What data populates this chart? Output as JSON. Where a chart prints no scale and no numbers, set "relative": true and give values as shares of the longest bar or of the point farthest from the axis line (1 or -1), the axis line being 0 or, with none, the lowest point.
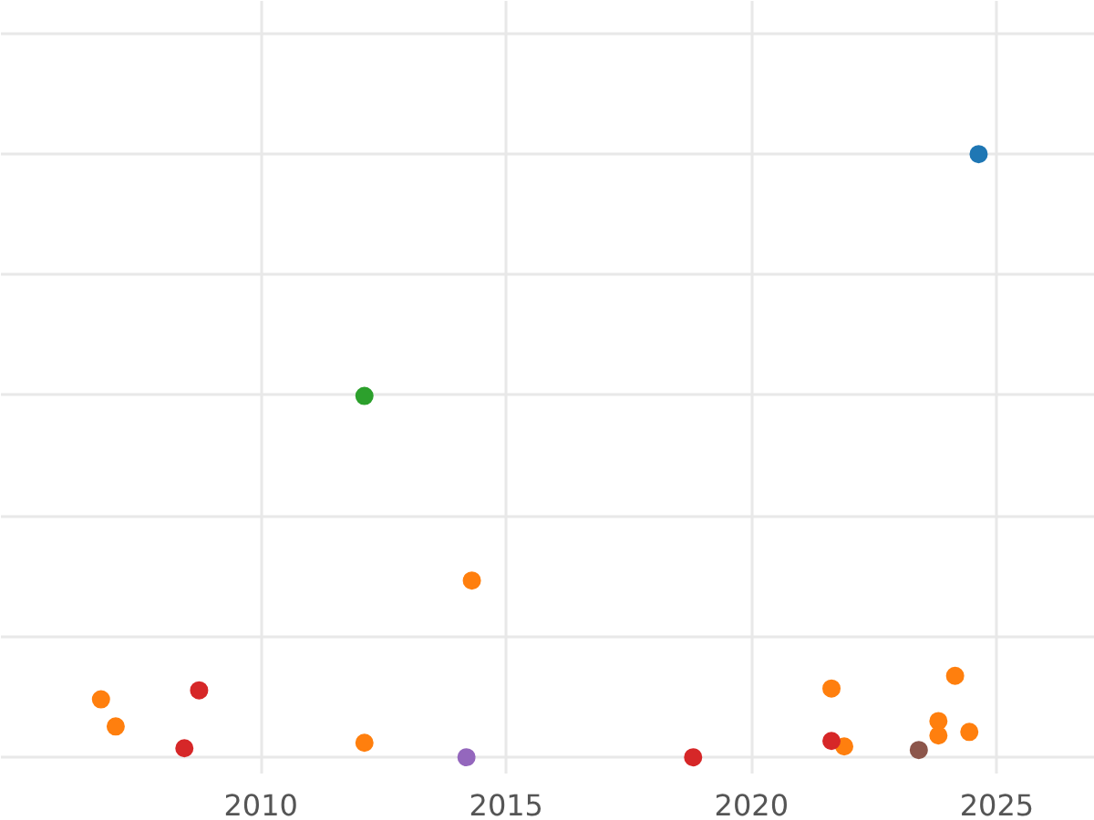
{
  "chart_data": {
    "type": "scatter",
    "relative": true,
    "xlim": [
      2004.7,
      2027
    ],
    "xticks": [
      2010,
      2015,
      2020,
      2025
    ],
    "grid": true,
    "marker": "circle",
    "series": [
      {
        "color": "#1f77b4",
        "x": [
          2024.63
        ],
        "values": [
          1.0
        ]
      },
      {
        "color": "#2ca02c",
        "x": [
          2012.11
        ],
        "values": [
          0.599
        ]
      },
      {
        "color": "#ff7f0e",
        "x": [
          2014.3,
          2006.74,
          2007.04,
          2012.11,
          2021.63,
          2021.89,
          2024.15,
          2023.81,
          2023.81,
          2024.44
        ],
        "values": [
          0.293,
          0.096,
          0.051,
          0.024,
          0.114,
          0.018,
          0.135,
          0.06,
          0.036,
          0.042
        ]
      },
      {
        "color": "#d62728",
        "x": [
          2008.74,
          2008.44,
          2018.81,
          2021.63
        ],
        "values": [
          0.111,
          0.015,
          0.0,
          0.027
        ]
      },
      {
        "color": "#9467bd",
        "x": [
          2014.19
        ],
        "values": [
          0.0
        ]
      },
      {
        "color": "#8c564b",
        "x": [
          2023.41
        ],
        "values": [
          0.012
        ]
      }
    ]
  }
}
